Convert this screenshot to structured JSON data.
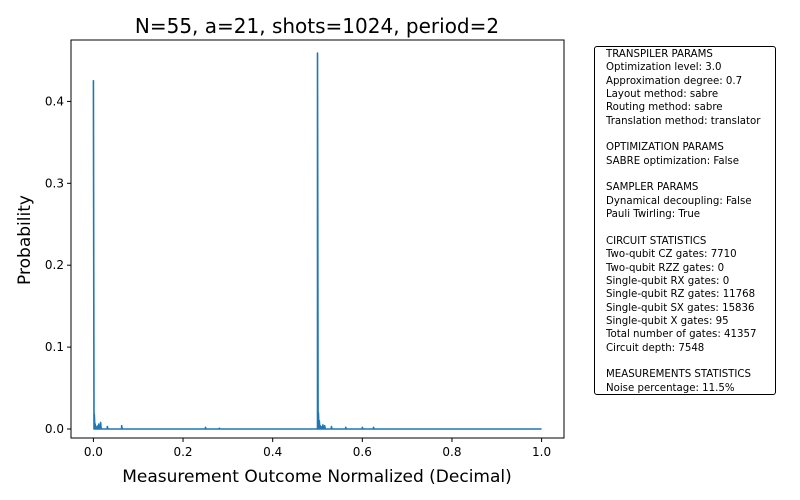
{
  "chart_data": {
    "type": "line",
    "title": "N=55, a=21, shots=1024, period=2",
    "xlabel": "Measurement Outcome Normalized (Decimal)",
    "ylabel": "Probability",
    "xlim": [
      -0.05,
      1.05
    ],
    "ylim": [
      -0.011,
      0.475
    ],
    "xticks": [
      0.0,
      0.2,
      0.4,
      0.6,
      0.8,
      1.0
    ],
    "xtick_labels": [
      "0.0",
      "0.2",
      "0.4",
      "0.6",
      "0.8",
      "1.0"
    ],
    "yticks": [
      0.0,
      0.1,
      0.2,
      0.3,
      0.4
    ],
    "ytick_labels": [
      "0.0",
      "0.1",
      "0.2",
      "0.3",
      "0.4"
    ],
    "grid": false,
    "line_color": "#1f77b4",
    "series": [
      {
        "x": [
          0.0,
          0.002,
          0.004,
          0.006,
          0.008,
          0.01,
          0.012,
          0.016,
          0.031,
          0.063,
          0.25,
          0.281,
          0.5,
          0.502,
          0.504,
          0.506,
          0.508,
          0.51,
          0.512,
          0.516,
          0.531,
          0.563,
          0.6,
          0.625,
          1.0
        ],
        "y": [
          0.426,
          0.018,
          0.006,
          0.003,
          0.002,
          0.004,
          0.006,
          0.008,
          0.003,
          0.004,
          0.002,
          0.001,
          0.459,
          0.02,
          0.01,
          0.004,
          0.002,
          0.003,
          0.005,
          0.004,
          0.003,
          0.002,
          0.002,
          0.002,
          0.0
        ]
      }
    ]
  },
  "info_box": {
    "lines": [
      "TRANSPILER PARAMS",
      "Optimization level: 3.0",
      "Approximation degree: 0.7",
      "Layout method: sabre",
      "Routing method: sabre",
      "Translation method: translator",
      "",
      "OPTIMIZATION PARAMS",
      "SABRE optimization: False",
      "",
      "SAMPLER PARAMS",
      "Dynamical decoupling: False",
      "Pauli Twirling: True",
      "",
      "CIRCUIT STATISTICS",
      "Two-qubit CZ gates: 7710",
      "Two-qubit RZZ gates: 0",
      "Single-qubit RX gates: 0",
      "Single-qubit RZ gates: 11768",
      "Single-qubit SX gates: 15836",
      "Single-qubit X gates: 95",
      "Total number of gates: 41357",
      "Circuit depth: 7548",
      "",
      "MEASUREMENTS STATISTICS",
      "Noise percentage: 11.5%"
    ]
  }
}
